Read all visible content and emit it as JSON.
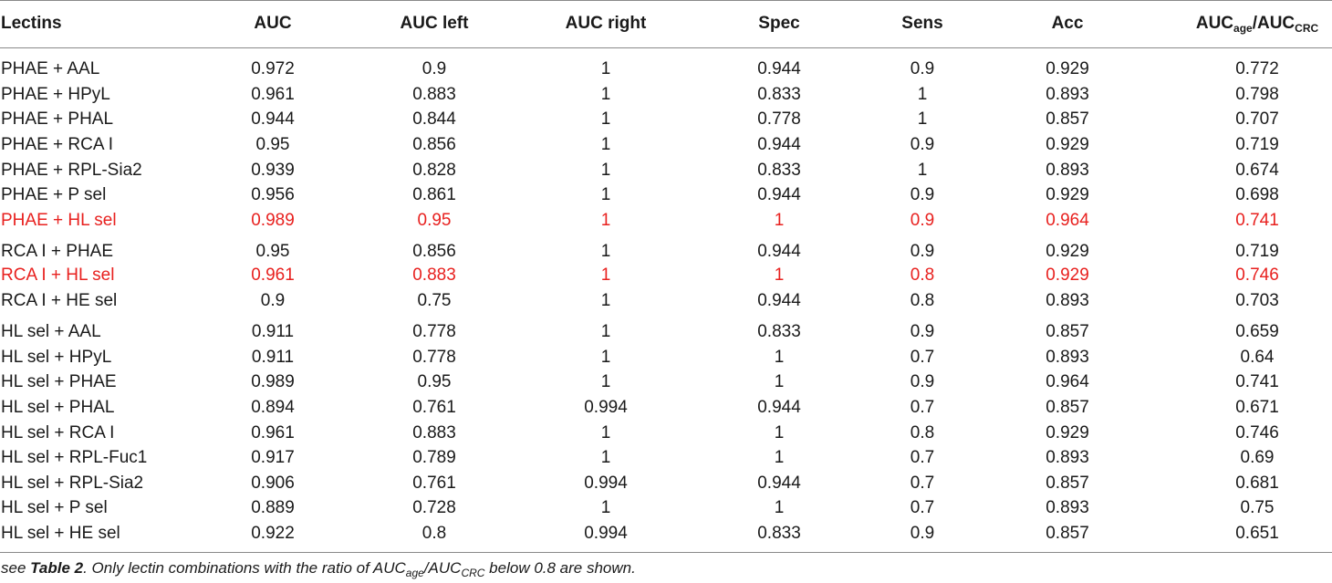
{
  "headers": {
    "lectins": "Lectins",
    "auc": "AUC",
    "auc_left": "AUC left",
    "auc_right": "AUC right",
    "spec": "Spec",
    "sens": "Sens",
    "acc": "Acc",
    "ratio_main_1": "AUC",
    "ratio_sub_1": "age",
    "ratio_slash": "/AUC",
    "ratio_sub_2": "CRC"
  },
  "highlight_color": "#e8211f",
  "rows": [
    {
      "lectins": "PHAE + AAL",
      "auc": "0.972",
      "auc_left": "0.9",
      "auc_right": "1",
      "spec": "0.944",
      "sens": "0.9",
      "acc": "0.929",
      "ratio": "0.772",
      "highlight": false
    },
    {
      "lectins": "PHAE + HPyL",
      "auc": "0.961",
      "auc_left": "0.883",
      "auc_right": "1",
      "spec": "0.833",
      "sens": "1",
      "acc": "0.893",
      "ratio": "0.798",
      "highlight": false
    },
    {
      "lectins": "PHAE + PHAL",
      "auc": "0.944",
      "auc_left": "0.844",
      "auc_right": "1",
      "spec": "0.778",
      "sens": "1",
      "acc": "0.857",
      "ratio": "0.707",
      "highlight": false
    },
    {
      "lectins": "PHAE + RCA I",
      "auc": "0.95",
      "auc_left": "0.856",
      "auc_right": "1",
      "spec": "0.944",
      "sens": "0.9",
      "acc": "0.929",
      "ratio": "0.719",
      "highlight": false
    },
    {
      "lectins": "PHAE + RPL-Sia2",
      "auc": "0.939",
      "auc_left": "0.828",
      "auc_right": "1",
      "spec": "0.833",
      "sens": "1",
      "acc": "0.893",
      "ratio": "0.674",
      "highlight": false
    },
    {
      "lectins": "PHAE + P sel",
      "auc": "0.956",
      "auc_left": "0.861",
      "auc_right": "1",
      "spec": "0.944",
      "sens": "0.9",
      "acc": "0.929",
      "ratio": "0.698",
      "highlight": false
    },
    {
      "lectins": "PHAE + HL sel",
      "auc": "0.989",
      "auc_left": "0.95",
      "auc_right": "1",
      "spec": "1",
      "sens": "0.9",
      "acc": "0.964",
      "ratio": "0.741",
      "highlight": true
    },
    {
      "lectins": "RCA I + PHAE",
      "auc": "0.95",
      "auc_left": "0.856",
      "auc_right": "1",
      "spec": "0.944",
      "sens": "0.9",
      "acc": "0.929",
      "ratio": "0.719",
      "highlight": false
    },
    {
      "lectins": "RCA I + HL sel",
      "auc": "0.961",
      "auc_left": "0.883",
      "auc_right": "1",
      "spec": "1",
      "sens": "0.8",
      "acc": "0.929",
      "ratio": "0.746",
      "highlight": true
    },
    {
      "lectins": "RCA I + HE sel",
      "auc": "0.9",
      "auc_left": "0.75",
      "auc_right": "1",
      "spec": "0.944",
      "sens": "0.8",
      "acc": "0.893",
      "ratio": "0.703",
      "highlight": false
    },
    {
      "lectins": "HL sel + AAL",
      "auc": "0.911",
      "auc_left": "0.778",
      "auc_right": "1",
      "spec": "0.833",
      "sens": "0.9",
      "acc": "0.857",
      "ratio": "0.659",
      "highlight": false
    },
    {
      "lectins": "HL sel + HPyL",
      "auc": "0.911",
      "auc_left": "0.778",
      "auc_right": "1",
      "spec": "1",
      "sens": "0.7",
      "acc": "0.893",
      "ratio": "0.64",
      "highlight": false
    },
    {
      "lectins": "HL sel + PHAE",
      "auc": "0.989",
      "auc_left": "0.95",
      "auc_right": "1",
      "spec": "1",
      "sens": "0.9",
      "acc": "0.964",
      "ratio": "0.741",
      "highlight": false
    },
    {
      "lectins": "HL sel + PHAL",
      "auc": "0.894",
      "auc_left": "0.761",
      "auc_right": "0.994",
      "spec": "0.944",
      "sens": "0.7",
      "acc": "0.857",
      "ratio": "0.671",
      "highlight": false
    },
    {
      "lectins": "HL sel + RCA I",
      "auc": "0.961",
      "auc_left": "0.883",
      "auc_right": "1",
      "spec": "1",
      "sens": "0.8",
      "acc": "0.929",
      "ratio": "0.746",
      "highlight": false
    },
    {
      "lectins": "HL sel + RPL-Fuc1",
      "auc": "0.917",
      "auc_left": "0.789",
      "auc_right": "1",
      "spec": "1",
      "sens": "0.7",
      "acc": "0.893",
      "ratio": "0.69",
      "highlight": false
    },
    {
      "lectins": "HL sel + RPL-Sia2",
      "auc": "0.906",
      "auc_left": "0.761",
      "auc_right": "0.994",
      "spec": "0.944",
      "sens": "0.7",
      "acc": "0.857",
      "ratio": "0.681",
      "highlight": false
    },
    {
      "lectins": "HL sel + P sel",
      "auc": "0.889",
      "auc_left": "0.728",
      "auc_right": "1",
      "spec": "1",
      "sens": "0.7",
      "acc": "0.893",
      "ratio": "0.75",
      "highlight": false
    },
    {
      "lectins": "HL sel + HE sel",
      "auc": "0.922",
      "auc_left": "0.8",
      "auc_right": "0.994",
      "spec": "0.833",
      "sens": "0.9",
      "acc": "0.857",
      "ratio": "0.651",
      "highlight": false
    }
  ],
  "footnote": {
    "prefix": "see ",
    "ref": "Table 2",
    "middle": ". Only lectin combinations with the ratio of AUC",
    "sub_1": "age",
    "slash": "/AUC",
    "sub_2": "CRC",
    "suffix": " below 0.8 are shown."
  }
}
